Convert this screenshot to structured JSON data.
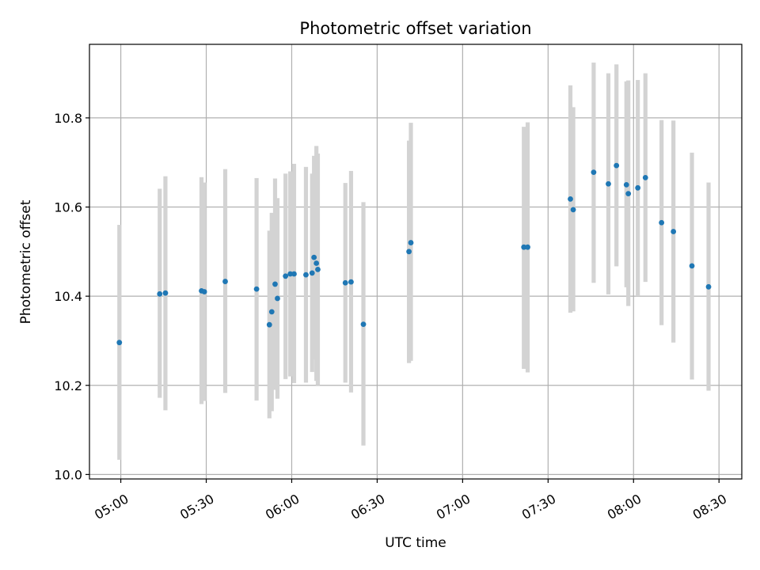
{
  "chart_data": {
    "type": "scatter",
    "title": "Photometric offset variation",
    "xlabel": "UTC time",
    "ylabel": "Photometric offset",
    "xlim": [
      "04:49",
      "08:38"
    ],
    "ylim": [
      9.99,
      10.965
    ],
    "x_ticks": [
      "05:00",
      "05:30",
      "06:00",
      "06:30",
      "07:00",
      "07:30",
      "08:00",
      "08:30"
    ],
    "y_ticks": [
      10.0,
      10.2,
      10.4,
      10.6,
      10.8
    ],
    "y_tick_labels": [
      "10.0",
      "10.2",
      "10.4",
      "10.6",
      "10.8"
    ],
    "grid": true,
    "colors": {
      "point": "#1f77b4",
      "errorbar": "#d3d3d3",
      "grid": "#b0b0b0"
    },
    "points": [
      {
        "x": "04:59:30",
        "y": 10.296,
        "ylow": 10.033,
        "yhigh": 10.56
      },
      {
        "x": "05:13:40",
        "y": 10.405,
        "ylow": 10.172,
        "yhigh": 10.641
      },
      {
        "x": "05:15:40",
        "y": 10.407,
        "ylow": 10.144,
        "yhigh": 10.669
      },
      {
        "x": "05:28:20",
        "y": 10.412,
        "ylow": 10.158,
        "yhigh": 10.667
      },
      {
        "x": "05:29:20",
        "y": 10.41,
        "ylow": 10.165,
        "yhigh": 10.655
      },
      {
        "x": "05:36:40",
        "y": 10.433,
        "ylow": 10.183,
        "yhigh": 10.685
      },
      {
        "x": "05:47:40",
        "y": 10.416,
        "ylow": 10.166,
        "yhigh": 10.665
      },
      {
        "x": "05:52:10",
        "y": 10.336,
        "ylow": 10.126,
        "yhigh": 10.547
      },
      {
        "x": "05:53:00",
        "y": 10.365,
        "ylow": 10.142,
        "yhigh": 10.587
      },
      {
        "x": "05:54:10",
        "y": 10.427,
        "ylow": 10.19,
        "yhigh": 10.664
      },
      {
        "x": "05:55:00",
        "y": 10.395,
        "ylow": 10.17,
        "yhigh": 10.62
      },
      {
        "x": "05:57:50",
        "y": 10.445,
        "ylow": 10.214,
        "yhigh": 10.675
      },
      {
        "x": "05:59:30",
        "y": 10.45,
        "ylow": 10.22,
        "yhigh": 10.68
      },
      {
        "x": "06:00:50",
        "y": 10.45,
        "ylow": 10.205,
        "yhigh": 10.697
      },
      {
        "x": "06:05:00",
        "y": 10.448,
        "ylow": 10.206,
        "yhigh": 10.69
      },
      {
        "x": "06:07:10",
        "y": 10.452,
        "ylow": 10.23,
        "yhigh": 10.675
      },
      {
        "x": "06:07:50",
        "y": 10.487,
        "ylow": 10.258,
        "yhigh": 10.715
      },
      {
        "x": "06:08:40",
        "y": 10.474,
        "ylow": 10.21,
        "yhigh": 10.737
      },
      {
        "x": "06:09:10",
        "y": 10.46,
        "ylow": 10.2,
        "yhigh": 10.72
      },
      {
        "x": "06:18:50",
        "y": 10.43,
        "ylow": 10.206,
        "yhigh": 10.654
      },
      {
        "x": "06:20:50",
        "y": 10.432,
        "ylow": 10.184,
        "yhigh": 10.681
      },
      {
        "x": "06:25:10",
        "y": 10.337,
        "ylow": 10.065,
        "yhigh": 10.611
      },
      {
        "x": "06:41:10",
        "y": 10.5,
        "ylow": 10.25,
        "yhigh": 10.749
      },
      {
        "x": "06:41:50",
        "y": 10.52,
        "ylow": 10.255,
        "yhigh": 10.789
      },
      {
        "x": "07:21:30",
        "y": 10.51,
        "ylow": 10.237,
        "yhigh": 10.78
      },
      {
        "x": "07:22:50",
        "y": 10.51,
        "ylow": 10.229,
        "yhigh": 10.79
      },
      {
        "x": "07:37:50",
        "y": 10.618,
        "ylow": 10.363,
        "yhigh": 10.873
      },
      {
        "x": "07:38:50",
        "y": 10.594,
        "ylow": 10.366,
        "yhigh": 10.824
      },
      {
        "x": "07:46:00",
        "y": 10.678,
        "ylow": 10.43,
        "yhigh": 10.924
      },
      {
        "x": "07:51:10",
        "y": 10.652,
        "ylow": 10.404,
        "yhigh": 10.9
      },
      {
        "x": "07:54:00",
        "y": 10.693,
        "ylow": 10.467,
        "yhigh": 10.92
      },
      {
        "x": "07:57:30",
        "y": 10.65,
        "ylow": 10.42,
        "yhigh": 10.882
      },
      {
        "x": "07:58:10",
        "y": 10.63,
        "ylow": 10.378,
        "yhigh": 10.884
      },
      {
        "x": "08:01:30",
        "y": 10.643,
        "ylow": 10.4,
        "yhigh": 10.885
      },
      {
        "x": "08:04:10",
        "y": 10.666,
        "ylow": 10.432,
        "yhigh": 10.9
      },
      {
        "x": "08:09:50",
        "y": 10.565,
        "ylow": 10.335,
        "yhigh": 10.795
      },
      {
        "x": "08:14:00",
        "y": 10.545,
        "ylow": 10.296,
        "yhigh": 10.794
      },
      {
        "x": "08:20:30",
        "y": 10.468,
        "ylow": 10.213,
        "yhigh": 10.722
      },
      {
        "x": "08:26:20",
        "y": 10.421,
        "ylow": 10.188,
        "yhigh": 10.655
      }
    ]
  }
}
